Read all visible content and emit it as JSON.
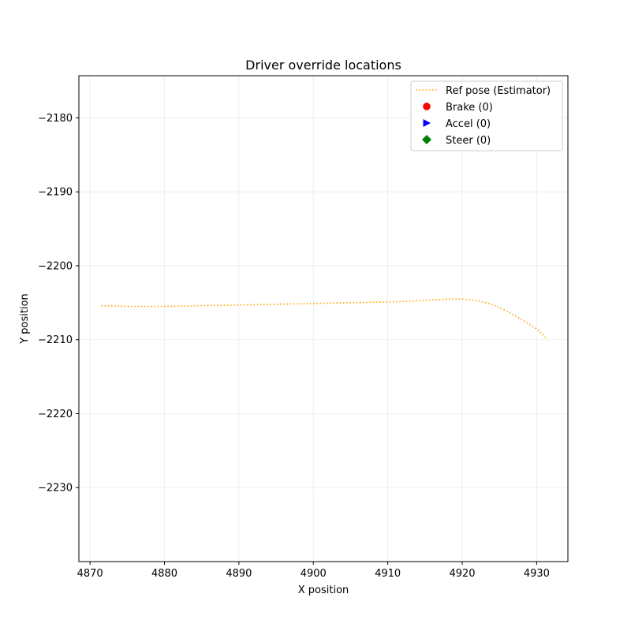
{
  "chart_data": {
    "type": "line",
    "title": "Driver override locations",
    "xlabel": "X position",
    "ylabel": "Y position",
    "xlim": [
      4868.5,
      4934.2
    ],
    "ylim": [
      -2240.0,
      -2174.3
    ],
    "x_ticks": [
      4870,
      4880,
      4890,
      4900,
      4910,
      4920,
      4930
    ],
    "y_ticks": [
      -2180,
      -2190,
      -2200,
      -2210,
      -2220,
      -2230
    ],
    "x_tick_labels": [
      "4870",
      "4880",
      "4890",
      "4900",
      "4910",
      "4920",
      "4930"
    ],
    "y_tick_labels": [
      "−2180",
      "−2190",
      "−2200",
      "−2210",
      "−2220",
      "−2230"
    ],
    "grid": true,
    "legend_position": "top-right",
    "series": [
      {
        "name": "Ref pose (Estimator)",
        "style": "dotted",
        "color": "#ffa500",
        "x": [
          4871.5,
          4875,
          4880,
          4885,
          4890,
          4895,
          4900,
          4905,
          4910,
          4913,
          4916,
          4918,
          4920,
          4922,
          4924,
          4926,
          4927.5,
          4929,
          4930.2,
          4931.2
        ],
        "y": [
          -2205.4,
          -2205.5,
          -2205.5,
          -2205.4,
          -2205.3,
          -2205.2,
          -2205.1,
          -2205.0,
          -2204.9,
          -2204.8,
          -2204.6,
          -2204.5,
          -2204.5,
          -2204.7,
          -2205.2,
          -2206.1,
          -2207.0,
          -2207.9,
          -2208.7,
          -2209.7
        ]
      }
    ],
    "marker_series": [
      {
        "name": "Brake (0)",
        "marker": "octagon",
        "color": "#ff0000",
        "x": [],
        "y": []
      },
      {
        "name": "Accel (0)",
        "marker": "triangle-right",
        "color": "#0000ff",
        "x": [],
        "y": []
      },
      {
        "name": "Steer (0)",
        "marker": "diamond",
        "color": "#008000",
        "x": [],
        "y": []
      }
    ]
  }
}
